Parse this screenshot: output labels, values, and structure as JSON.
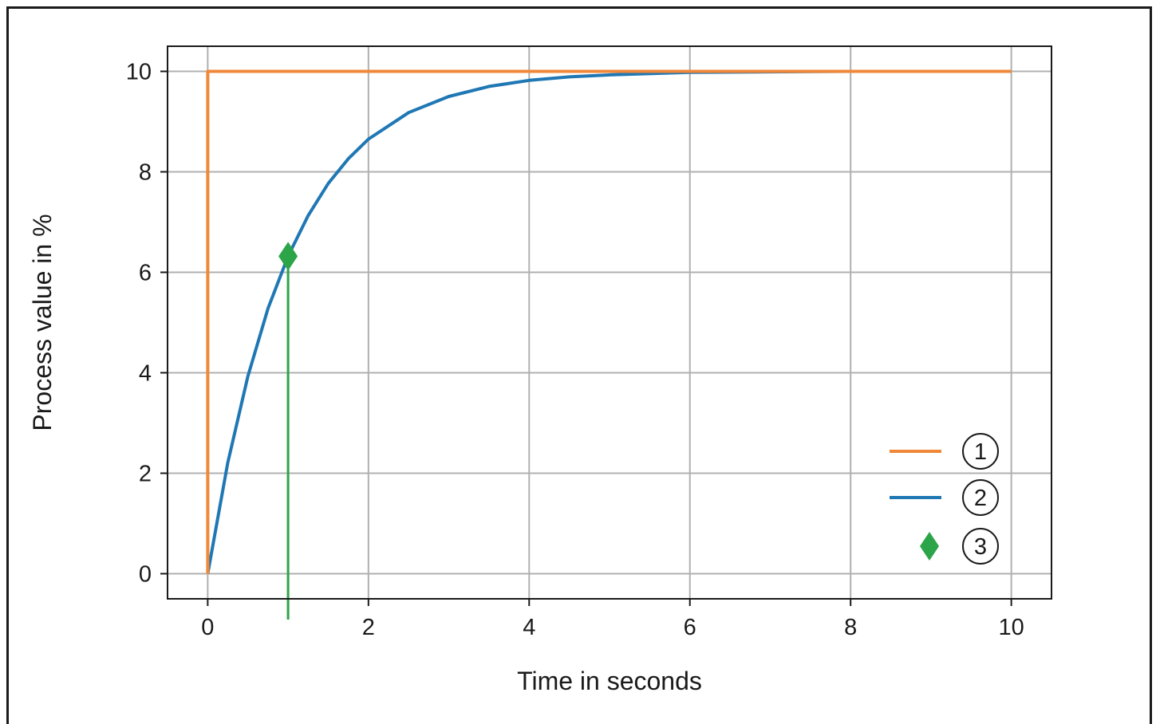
{
  "chart_data": {
    "type": "line",
    "xlabel": "Time in seconds",
    "ylabel": "Process value in %",
    "xlim": [
      -0.5,
      10.5
    ],
    "ylim": [
      -0.5,
      10.5
    ],
    "x_ticks": [
      0,
      2,
      4,
      6,
      8,
      10
    ],
    "y_ticks": [
      0,
      2,
      4,
      6,
      8,
      10
    ],
    "x_tick_labels": [
      "0",
      "2",
      "4",
      "6",
      "8",
      "10"
    ],
    "y_tick_labels": [
      "0",
      "2",
      "4",
      "6",
      "8",
      "10"
    ],
    "grid": true,
    "legend_position": "lower-right",
    "series": [
      {
        "name": "1",
        "kind": "line",
        "color": "#f0883a",
        "x": [
          0,
          0,
          10
        ],
        "y": [
          0,
          10,
          10
        ]
      },
      {
        "name": "2",
        "kind": "line",
        "color": "#1f77b4",
        "x": [
          0,
          0.25,
          0.5,
          0.75,
          1,
          1.25,
          1.5,
          1.75,
          2,
          2.5,
          3,
          3.5,
          4,
          4.5,
          5,
          6,
          7,
          8,
          9,
          10
        ],
        "y": [
          0,
          2.21,
          3.93,
          5.28,
          6.32,
          7.13,
          7.77,
          8.26,
          8.65,
          9.18,
          9.5,
          9.7,
          9.82,
          9.89,
          9.93,
          9.98,
          9.99,
          10,
          10,
          10
        ]
      },
      {
        "name": "3",
        "kind": "marker",
        "marker": "diamond",
        "color": "#2ca548",
        "x": [
          1
        ],
        "y": [
          6.32
        ]
      }
    ]
  }
}
